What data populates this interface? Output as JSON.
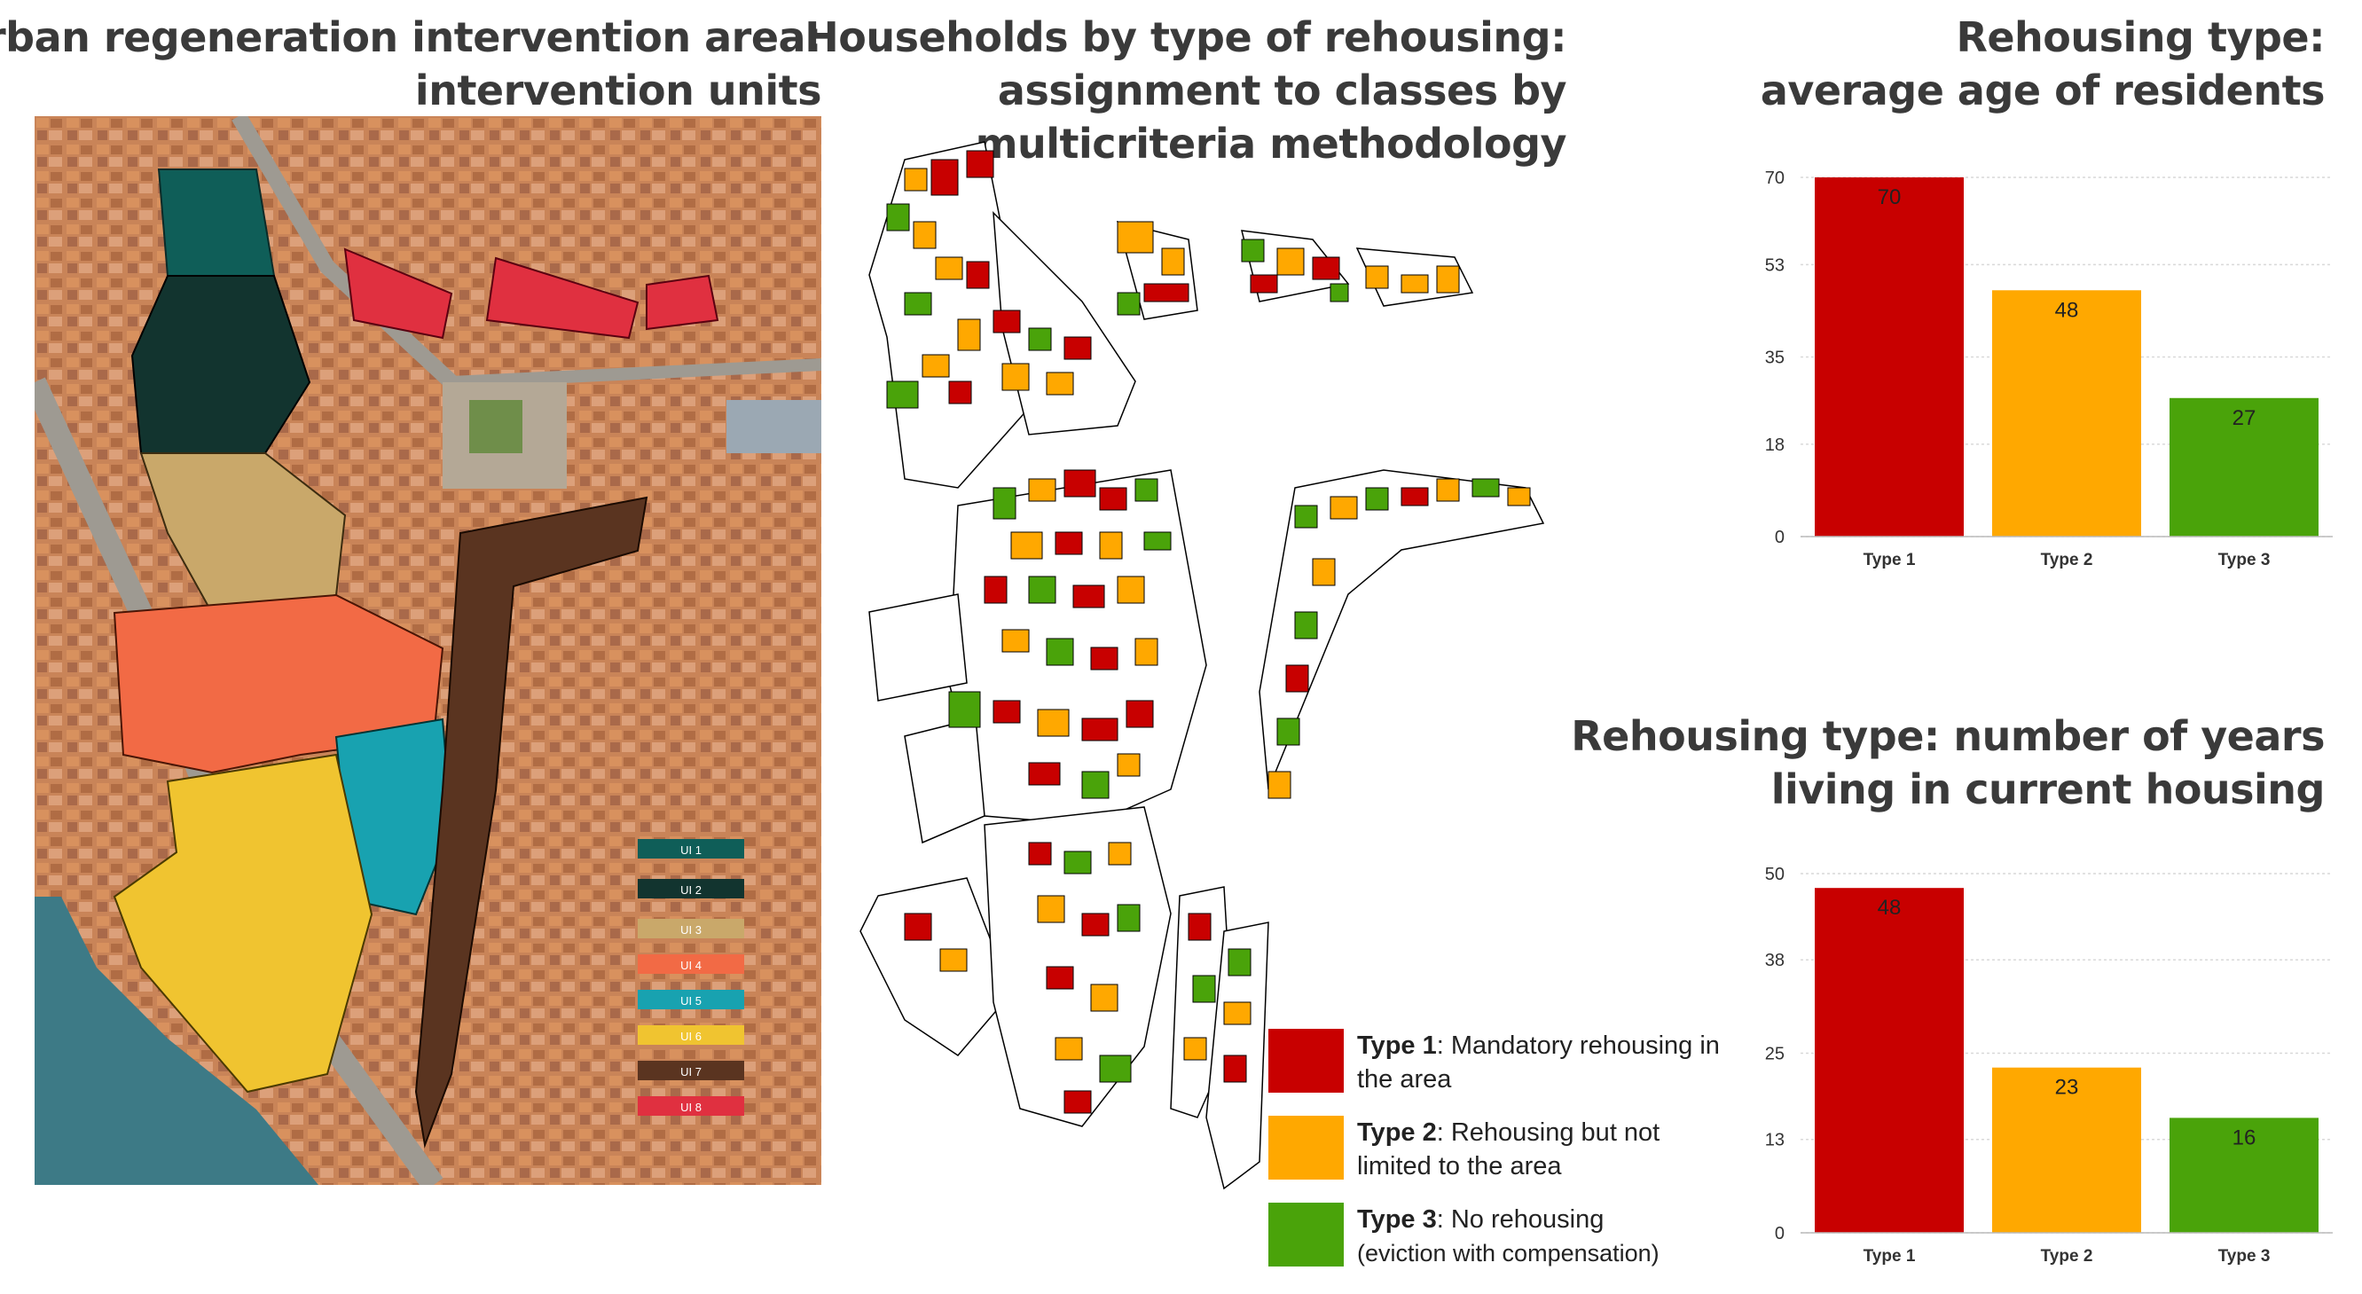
{
  "titles": {
    "map_line1": "Urban regeneration intervention area:",
    "map_line2": "intervention units",
    "households_line1": "Households by type of rehousing:",
    "households_line2": "assignment to classes by",
    "households_line3": "multicriteria methodology",
    "age_line1": "Rehousing type:",
    "age_line2": "average age of residents",
    "years_line1": "Rehousing type: number of years",
    "years_line2": "living in current housing"
  },
  "map": {
    "unit_labels": [
      "UI 1",
      "UI 2",
      "UI 3",
      "UI 4",
      "UI 5",
      "UI 6",
      "UI 7",
      "UI 8"
    ]
  },
  "legend": [
    {
      "name": "Type 1",
      "desc": "Mandatory rehousing in the area",
      "color": "#c80000"
    },
    {
      "name": "Type 2",
      "desc": "Rehousing but not limited to the area",
      "color": "#ffa800"
    },
    {
      "name": "Type 3",
      "desc": "No rehousing",
      "note": "(eviction with compensation)",
      "color": "#4aa30a"
    }
  ],
  "colors": {
    "type1": "#c80000",
    "type2": "#ffa800",
    "type3": "#4aa30a",
    "ui1": "#0f5e58",
    "ui2": "#12342f",
    "ui3": "#c9a86a",
    "ui4": "#f26a45",
    "ui5": "#18a2b0",
    "ui6": "#f0c430",
    "ui7": "#5a3420",
    "ui8": "#e03040"
  },
  "chart_data": [
    {
      "type": "bar",
      "title": "Rehousing type: average age of residents",
      "categories": [
        "Type 1",
        "Type 2",
        "Type 3"
      ],
      "values": [
        70,
        48,
        27
      ],
      "yticks": [
        0,
        18,
        35,
        53,
        70
      ],
      "ylim": [
        0,
        70
      ],
      "grid": true,
      "colors": [
        "#c80000",
        "#ffa800",
        "#4aa30a"
      ]
    },
    {
      "type": "bar",
      "title": "Rehousing type: number of years living in current housing",
      "categories": [
        "Type 1",
        "Type 2",
        "Type 3"
      ],
      "values": [
        48,
        23,
        16
      ],
      "yticks": [
        0,
        13,
        25,
        38,
        50
      ],
      "ylim": [
        0,
        50
      ],
      "grid": true,
      "colors": [
        "#c80000",
        "#ffa800",
        "#4aa30a"
      ]
    }
  ]
}
